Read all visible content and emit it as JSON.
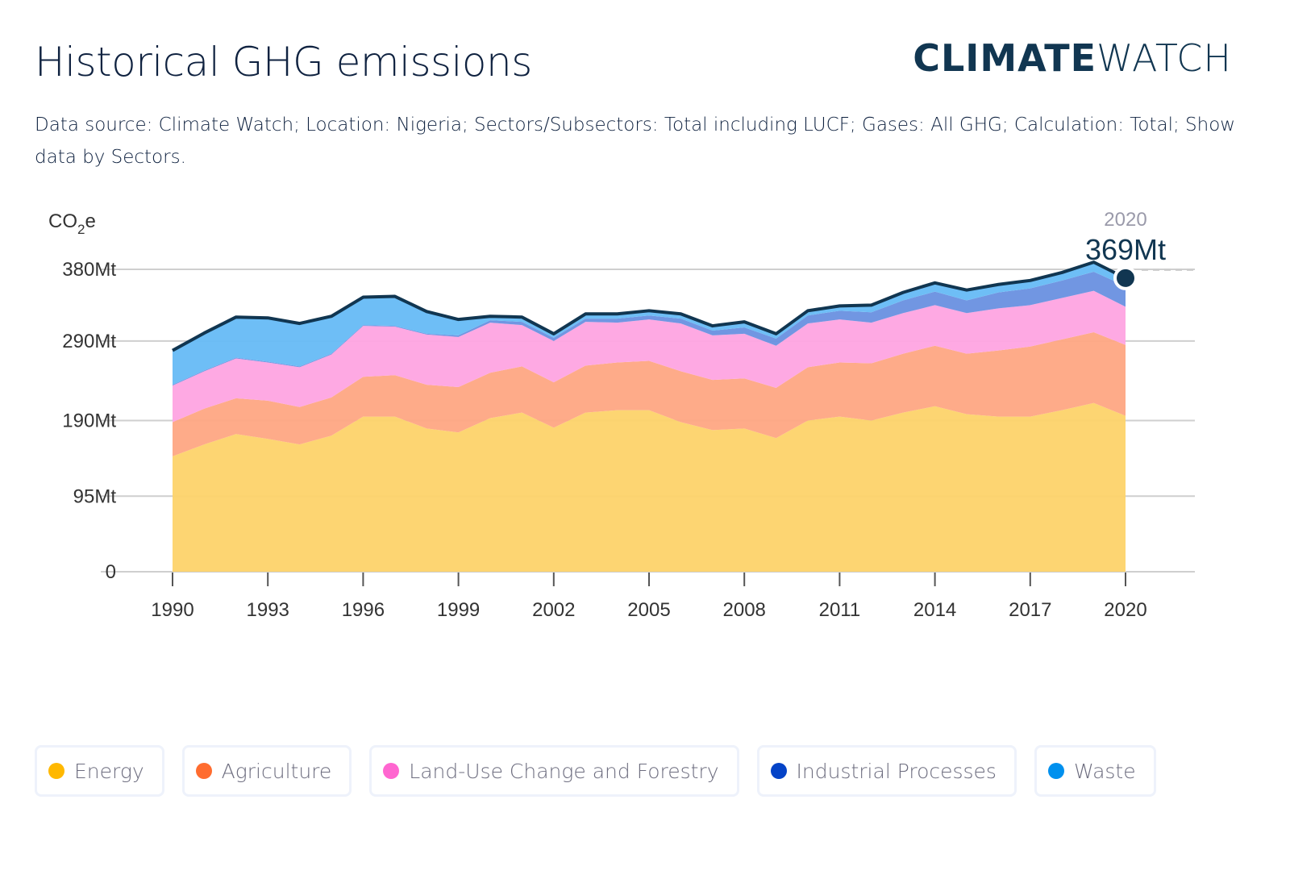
{
  "header": {
    "title": "Historical GHG emissions",
    "logo_bold": "CLIMATE",
    "logo_light": "WATCH",
    "subtitle": "Data source: Climate Watch; Location: Nigeria; Sectors/Subsectors: Total including LUCF; Gases: All GHG; Calculation: Total; Show data by Sectors."
  },
  "tooltip": {
    "year": "2020",
    "value": "369Mt"
  },
  "legend": [
    {
      "label": "Energy",
      "color": "#ffb800"
    },
    {
      "label": "Agriculture",
      "color": "#ff6c2f"
    },
    {
      "label": "Land-Use Change and Forestry",
      "color": "#ff66d0"
    },
    {
      "label": "Industrial Processes",
      "color": "#0443c7"
    },
    {
      "label": "Waste",
      "color": "#0090ee"
    }
  ],
  "chart_data": {
    "type": "area",
    "stacked": true,
    "title": "Historical GHG emissions",
    "ylabel": "CO2e",
    "xlabel": "",
    "ylim": [
      0,
      380
    ],
    "y_ticks": [
      0,
      95,
      190,
      290,
      380
    ],
    "y_tick_labels": [
      "0",
      "95Mt",
      "190Mt",
      "290Mt",
      "380Mt"
    ],
    "x_ticks": [
      1990,
      1993,
      1996,
      1999,
      2002,
      2005,
      2008,
      2011,
      2014,
      2017,
      2020
    ],
    "x_tick_labels": [
      "1990",
      "1993",
      "1996",
      "1999",
      "2002",
      "2005",
      "2008",
      "2011",
      "2014",
      "2017",
      "2020"
    ],
    "xlim": [
      1990,
      2020
    ],
    "grid": true,
    "legend_position": "bottom",
    "x": [
      1990,
      1991,
      1992,
      1993,
      1994,
      1995,
      1996,
      1997,
      1998,
      1999,
      2000,
      2001,
      2002,
      2003,
      2004,
      2005,
      2006,
      2007,
      2008,
      2009,
      2010,
      2011,
      2012,
      2013,
      2014,
      2015,
      2016,
      2017,
      2018,
      2019,
      2020
    ],
    "series": [
      {
        "name": "Energy",
        "color": "#fdd36a",
        "values": [
          145,
          160,
          173,
          167,
          160,
          171,
          195,
          195,
          180,
          175,
          193,
          200,
          181,
          200,
          203,
          203,
          188,
          178,
          180,
          168,
          190,
          195,
          190,
          200,
          208,
          198,
          195,
          195,
          203,
          212,
          196
        ]
      },
      {
        "name": "Agriculture",
        "color": "#fea783",
        "values": [
          43,
          45,
          45,
          48,
          47,
          48,
          50,
          52,
          55,
          57,
          57,
          58,
          57,
          59,
          60,
          62,
          64,
          63,
          63,
          63,
          67,
          68,
          72,
          74,
          76,
          76,
          83,
          88,
          89,
          89,
          89
        ]
      },
      {
        "name": "Land-Use Change and Forestry",
        "color": "#fea4e2",
        "values": [
          46,
          47,
          50,
          48,
          50,
          54,
          64,
          61,
          63,
          63,
          63,
          52,
          52,
          55,
          50,
          52,
          60,
          56,
          56,
          53,
          55,
          54,
          51,
          51,
          51,
          51,
          53,
          52,
          52,
          52,
          48
        ]
      },
      {
        "name": "Industrial Processes",
        "color": "#6990e0",
        "values": [
          1,
          1,
          1,
          1,
          1,
          1,
          1,
          1,
          1,
          2,
          3,
          4,
          4,
          4,
          5,
          5,
          6,
          6,
          8,
          9,
          10,
          11,
          13,
          16,
          17,
          16,
          20,
          21,
          22,
          24,
          26
        ]
      },
      {
        "name": "Waste",
        "color": "#66baf5",
        "values": [
          43,
          47,
          51,
          55,
          54,
          47,
          35,
          37,
          28,
          20,
          5,
          6,
          5,
          6,
          6,
          6,
          6,
          6,
          7,
          6,
          6,
          6,
          9,
          10,
          11,
          13,
          10,
          10,
          10,
          12,
          10
        ]
      }
    ],
    "totals": [
      278,
      300,
      320,
      319,
      312,
      321,
      345,
      346,
      327,
      317,
      321,
      320,
      299,
      324,
      324,
      328,
      324,
      309,
      314,
      299,
      328,
      334,
      335,
      351,
      363,
      354,
      361,
      366,
      376,
      389,
      369
    ],
    "highlight": {
      "x": 2020,
      "value": 369,
      "label": "369Mt"
    }
  }
}
